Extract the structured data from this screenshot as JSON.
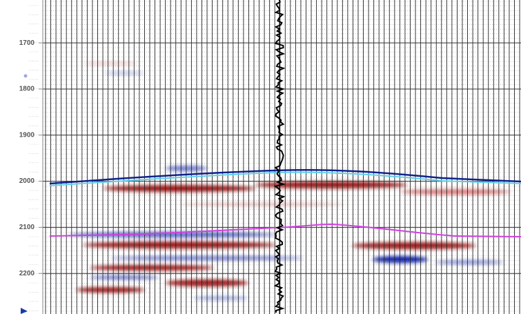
{
  "depth_axis": {
    "range": [
      1607,
      2288
    ],
    "ticks": [
      1700,
      1800,
      1900,
      2000,
      2100,
      2200
    ]
  }
}
